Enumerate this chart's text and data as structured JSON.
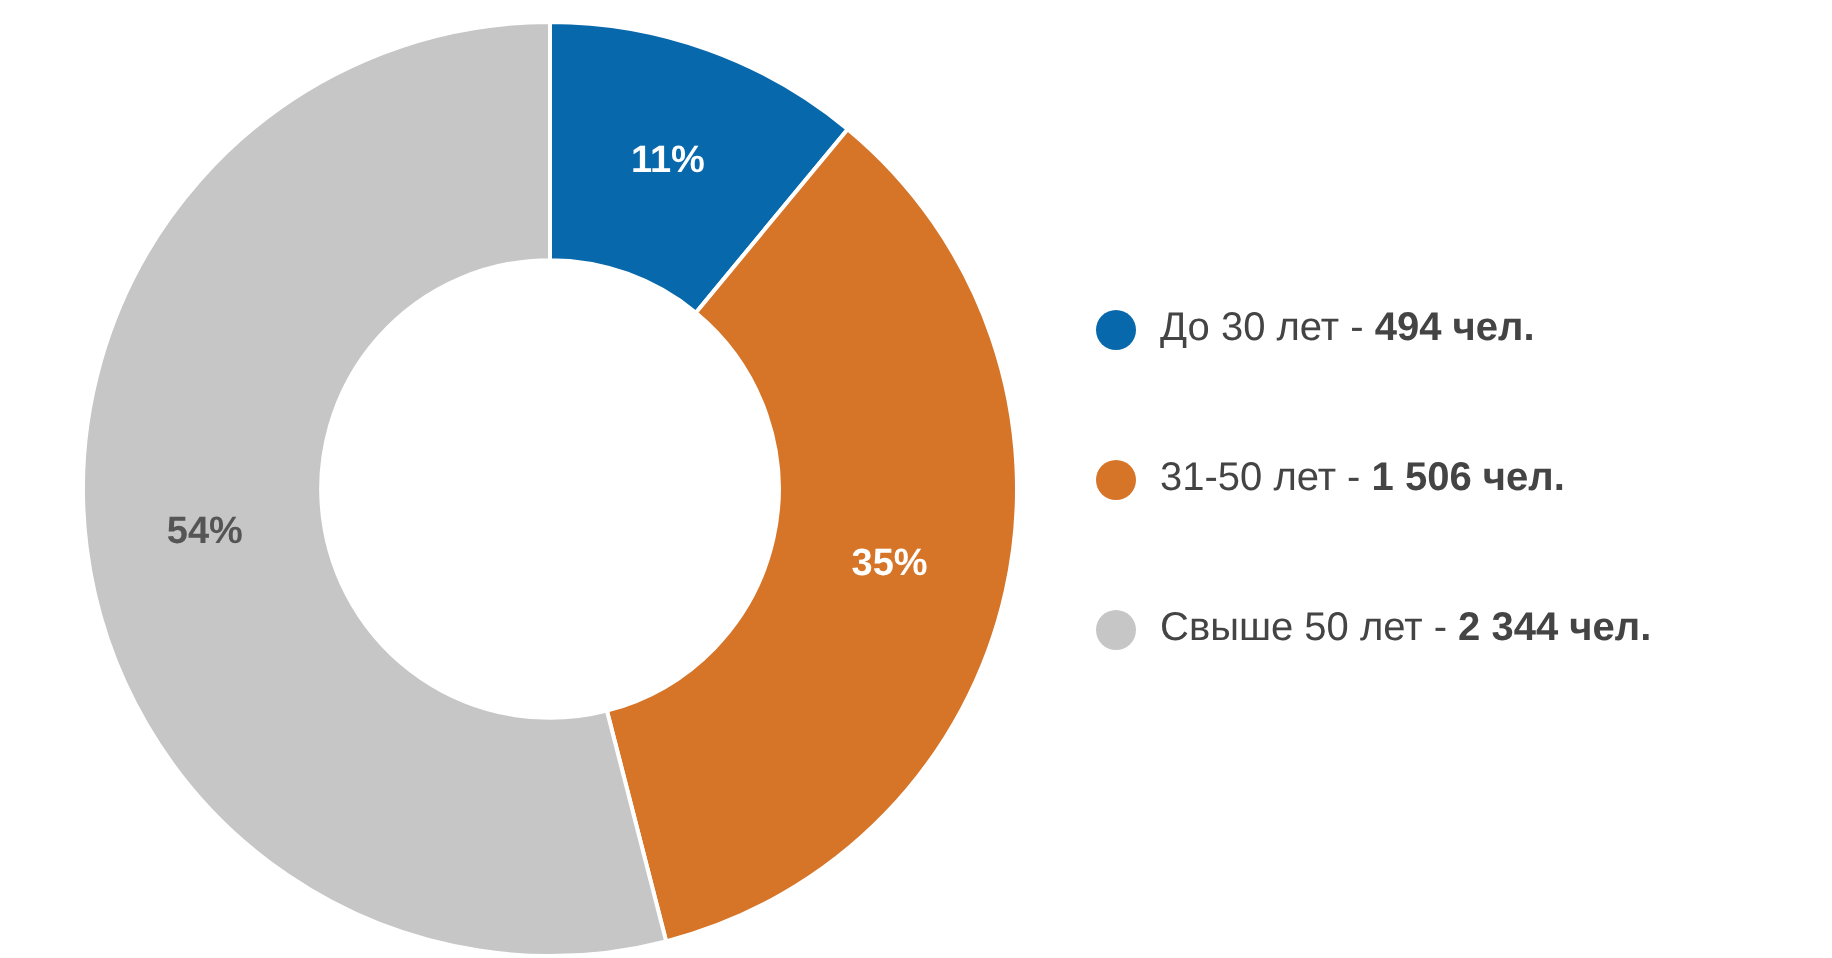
{
  "chart_data": {
    "type": "donut",
    "categories": [
      "До 30 лет - 494 чел.",
      "31-50 лет - 1 506 чел.",
      "Свыше 50 лет - 2 344 чел."
    ],
    "values": [
      11,
      35,
      54
    ],
    "colors": [
      "#0868ac",
      "#d67428",
      "#c6c6c6"
    ],
    "value_labels": [
      "11%",
      "35%",
      "54%"
    ],
    "legend": "right"
  }
}
